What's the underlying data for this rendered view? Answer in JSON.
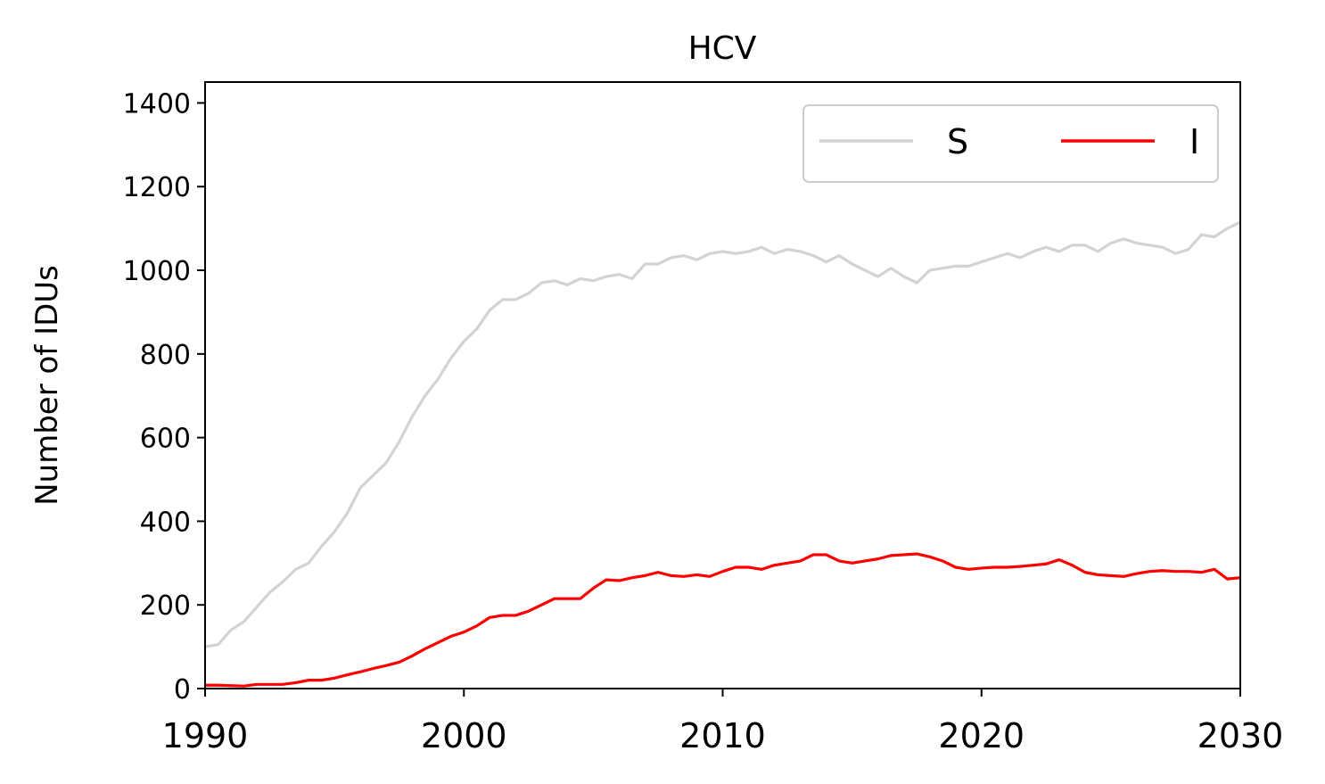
{
  "chart_data": {
    "type": "line",
    "title": "HCV",
    "xlabel": "",
    "ylabel": "Number of IDUs",
    "xlim": [
      1990,
      2030
    ],
    "ylim": [
      0,
      1450
    ],
    "xticks": [
      1990,
      2000,
      2010,
      2020,
      2030
    ],
    "yticks": [
      0,
      200,
      400,
      600,
      800,
      1000,
      1200,
      1400
    ],
    "grid": false,
    "legend": {
      "placement": "top-right",
      "columns": 2
    },
    "series": [
      {
        "name": "S",
        "color": "#d3d3d3",
        "points": [
          [
            1990,
            100
          ],
          [
            1990.5,
            105
          ],
          [
            1991,
            140
          ],
          [
            1991.5,
            160
          ],
          [
            1992,
            195
          ],
          [
            1992.5,
            230
          ],
          [
            1993,
            255
          ],
          [
            1993.5,
            285
          ],
          [
            1994,
            300
          ],
          [
            1994.5,
            340
          ],
          [
            1995,
            375
          ],
          [
            1995.5,
            420
          ],
          [
            1996,
            480
          ],
          [
            1996.5,
            510
          ],
          [
            1997,
            540
          ],
          [
            1997.5,
            590
          ],
          [
            1998,
            650
          ],
          [
            1998.5,
            700
          ],
          [
            1999,
            740
          ],
          [
            1999.5,
            790
          ],
          [
            2000,
            830
          ],
          [
            2000.5,
            860
          ],
          [
            2001,
            905
          ],
          [
            2001.5,
            930
          ],
          [
            2002,
            930
          ],
          [
            2002.5,
            945
          ],
          [
            2003,
            970
          ],
          [
            2003.5,
            975
          ],
          [
            2004,
            965
          ],
          [
            2004.5,
            980
          ],
          [
            2005,
            975
          ],
          [
            2005.5,
            985
          ],
          [
            2006,
            990
          ],
          [
            2006.5,
            980
          ],
          [
            2007,
            1015
          ],
          [
            2007.5,
            1015
          ],
          [
            2008,
            1030
          ],
          [
            2008.5,
            1035
          ],
          [
            2009,
            1025
          ],
          [
            2009.5,
            1040
          ],
          [
            2010,
            1045
          ],
          [
            2010.5,
            1040
          ],
          [
            2011,
            1045
          ],
          [
            2011.5,
            1055
          ],
          [
            2012,
            1040
          ],
          [
            2012.5,
            1050
          ],
          [
            2013,
            1045
          ],
          [
            2013.5,
            1035
          ],
          [
            2014,
            1020
          ],
          [
            2014.5,
            1035
          ],
          [
            2015,
            1015
          ],
          [
            2015.5,
            1000
          ],
          [
            2016,
            985
          ],
          [
            2016.5,
            1005
          ],
          [
            2017,
            985
          ],
          [
            2017.5,
            970
          ],
          [
            2018,
            1000
          ],
          [
            2018.5,
            1005
          ],
          [
            2019,
            1010
          ],
          [
            2019.5,
            1010
          ],
          [
            2020,
            1020
          ],
          [
            2020.5,
            1030
          ],
          [
            2021,
            1040
          ],
          [
            2021.5,
            1030
          ],
          [
            2022,
            1045
          ],
          [
            2022.5,
            1055
          ],
          [
            2023,
            1045
          ],
          [
            2023.5,
            1060
          ],
          [
            2024,
            1060
          ],
          [
            2024.5,
            1045
          ],
          [
            2025,
            1065
          ],
          [
            2025.5,
            1075
          ],
          [
            2026,
            1065
          ],
          [
            2026.5,
            1060
          ],
          [
            2027,
            1055
          ],
          [
            2027.5,
            1040
          ],
          [
            2028,
            1050
          ],
          [
            2028.5,
            1085
          ],
          [
            2029,
            1080
          ],
          [
            2029.5,
            1100
          ],
          [
            2030,
            1115
          ]
        ]
      },
      {
        "name": "I",
        "color": "#ff0000",
        "points": [
          [
            1990,
            8
          ],
          [
            1990.5,
            8
          ],
          [
            1991,
            7
          ],
          [
            1991.5,
            6
          ],
          [
            1992,
            10
          ],
          [
            1992.5,
            10
          ],
          [
            1993,
            10
          ],
          [
            1993.5,
            14
          ],
          [
            1994,
            20
          ],
          [
            1994.5,
            20
          ],
          [
            1995,
            25
          ],
          [
            1995.5,
            33
          ],
          [
            1996,
            40
          ],
          [
            1996.5,
            48
          ],
          [
            1997,
            55
          ],
          [
            1997.5,
            63
          ],
          [
            1998,
            78
          ],
          [
            1998.5,
            95
          ],
          [
            1999,
            110
          ],
          [
            1999.5,
            125
          ],
          [
            2000,
            135
          ],
          [
            2000.5,
            150
          ],
          [
            2001,
            170
          ],
          [
            2001.5,
            175
          ],
          [
            2002,
            175
          ],
          [
            2002.5,
            185
          ],
          [
            2003,
            200
          ],
          [
            2003.5,
            215
          ],
          [
            2004,
            215
          ],
          [
            2004.5,
            215
          ],
          [
            2005,
            240
          ],
          [
            2005.5,
            260
          ],
          [
            2006,
            258
          ],
          [
            2006.5,
            265
          ],
          [
            2007,
            270
          ],
          [
            2007.5,
            278
          ],
          [
            2008,
            270
          ],
          [
            2008.5,
            268
          ],
          [
            2009,
            272
          ],
          [
            2009.5,
            268
          ],
          [
            2010,
            280
          ],
          [
            2010.5,
            290
          ],
          [
            2011,
            290
          ],
          [
            2011.5,
            285
          ],
          [
            2012,
            295
          ],
          [
            2012.5,
            300
          ],
          [
            2013,
            305
          ],
          [
            2013.5,
            320
          ],
          [
            2014,
            320
          ],
          [
            2014.5,
            305
          ],
          [
            2015,
            300
          ],
          [
            2015.5,
            305
          ],
          [
            2016,
            310
          ],
          [
            2016.5,
            318
          ],
          [
            2017,
            320
          ],
          [
            2017.5,
            322
          ],
          [
            2018,
            315
          ],
          [
            2018.5,
            305
          ],
          [
            2019,
            290
          ],
          [
            2019.5,
            285
          ],
          [
            2020,
            288
          ],
          [
            2020.5,
            290
          ],
          [
            2021,
            290
          ],
          [
            2021.5,
            292
          ],
          [
            2022,
            295
          ],
          [
            2022.5,
            298
          ],
          [
            2023,
            308
          ],
          [
            2023.5,
            295
          ],
          [
            2024,
            278
          ],
          [
            2024.5,
            272
          ],
          [
            2025,
            270
          ],
          [
            2025.5,
            268
          ],
          [
            2026,
            275
          ],
          [
            2026.5,
            280
          ],
          [
            2027,
            282
          ],
          [
            2027.5,
            280
          ],
          [
            2028,
            280
          ],
          [
            2028.5,
            278
          ],
          [
            2029,
            285
          ],
          [
            2029.5,
            262
          ],
          [
            2030,
            265
          ]
        ]
      }
    ]
  }
}
